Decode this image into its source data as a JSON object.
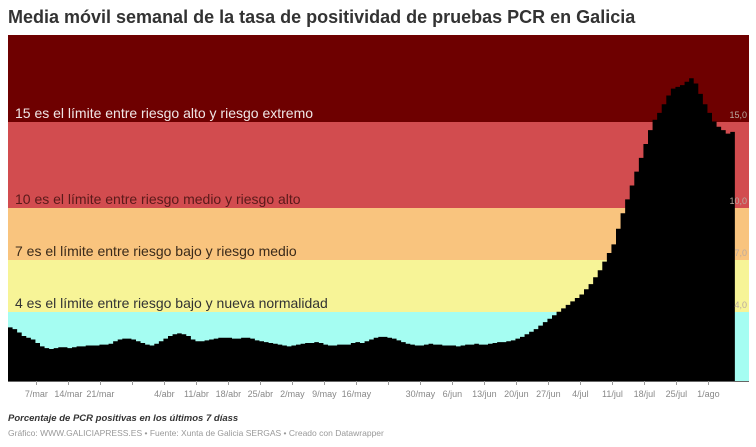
{
  "title": "Media móvil semanal de la tasa de positividad de pruebas PCR en Galicia",
  "notes": "Porcentaje de PCR positivas en los últimos 7 díass",
  "byline": "Gráfico: WWW.GALICIAPRESS.ES • Fuente: Xunta de Galicia SERGAS • Creado con Datawrapper",
  "bands": [
    {
      "from": 15,
      "to": 20,
      "color": "#6e0000",
      "label": "15 es el límite entre riesgo alto y riesgo extremo",
      "label_color": "#f0e6e6",
      "axis_label": "15,0"
    },
    {
      "from": 10,
      "to": 15,
      "color": "#d24c4f",
      "label": "10 es el límite entre riesgo medio y riesgo alto",
      "label_color": "#5a1a1a",
      "axis_label": "10,0"
    },
    {
      "from": 7,
      "to": 10,
      "color": "#f9c47e",
      "label": "7 es el límite entre riesgo bajo y riesgo medio",
      "label_color": "#3a2a1a",
      "axis_label": "7,0"
    },
    {
      "from": 4,
      "to": 7,
      "color": "#f7f497",
      "label": "4 es el límite entre riesgo bajo y nueva normalidad",
      "label_color": "#333333",
      "axis_label": "4,0"
    },
    {
      "from": 0,
      "to": 4,
      "color": "#a5fdf2",
      "label": "",
      "label_color": "#333333",
      "axis_label": ""
    }
  ],
  "chart_data": {
    "type": "bar",
    "title": "Media móvil semanal de la tasa de positividad de pruebas PCR en Galicia",
    "subtitle": "",
    "xlabel": "",
    "ylabel": "Porcentaje de PCR positivas en los últimos 7 días",
    "ylim": [
      0,
      20
    ],
    "bar_color": "#000000",
    "x_start": "1/mar",
    "x_end": "4/ago",
    "x_tick_labels": [
      "7/mar",
      "14/mar",
      "21/mar",
      "",
      "4/abr",
      "11/abr",
      "18/abr",
      "25/abr",
      "2/may",
      "9/may",
      "16/may",
      "",
      "30/may",
      "6/jun",
      "13/jun",
      "20/jun",
      "27/jun",
      "4/jul",
      "11/jul",
      "18/jul",
      "25/jul",
      "1/ago"
    ],
    "y_reference_lines": [
      4.0,
      7.0,
      10.0,
      15.0
    ],
    "grid": false,
    "legend": "none",
    "values": [
      3.1,
      3.0,
      2.8,
      2.6,
      2.5,
      2.4,
      2.2,
      2.0,
      1.9,
      1.85,
      1.9,
      1.95,
      1.95,
      1.9,
      1.95,
      2.0,
      2.0,
      2.05,
      2.05,
      2.05,
      2.1,
      2.1,
      2.15,
      2.3,
      2.4,
      2.45,
      2.45,
      2.4,
      2.3,
      2.2,
      2.1,
      2.05,
      2.15,
      2.3,
      2.45,
      2.6,
      2.7,
      2.75,
      2.7,
      2.6,
      2.4,
      2.3,
      2.3,
      2.35,
      2.4,
      2.45,
      2.5,
      2.5,
      2.5,
      2.45,
      2.45,
      2.5,
      2.5,
      2.45,
      2.35,
      2.3,
      2.25,
      2.2,
      2.15,
      2.1,
      2.05,
      2.0,
      2.05,
      2.1,
      2.15,
      2.2,
      2.2,
      2.25,
      2.2,
      2.1,
      2.05,
      2.05,
      2.1,
      2.1,
      2.1,
      2.2,
      2.25,
      2.2,
      2.3,
      2.4,
      2.5,
      2.55,
      2.55,
      2.5,
      2.45,
      2.35,
      2.25,
      2.15,
      2.1,
      2.05,
      2.05,
      2.1,
      2.15,
      2.1,
      2.1,
      2.05,
      2.05,
      2.05,
      2.0,
      2.05,
      2.1,
      2.1,
      2.15,
      2.1,
      2.1,
      2.15,
      2.2,
      2.25,
      2.25,
      2.3,
      2.35,
      2.45,
      2.55,
      2.7,
      2.85,
      3.0,
      3.2,
      3.4,
      3.6,
      3.8,
      4.0,
      4.2,
      4.4,
      4.6,
      4.8,
      5.0,
      5.3,
      5.6,
      6.0,
      6.4,
      6.9,
      7.4,
      7.9,
      8.8,
      9.7,
      10.5,
      11.3,
      12.1,
      12.9,
      13.7,
      14.5,
      15.1,
      15.5,
      16.0,
      16.5,
      16.9,
      17.0,
      17.1,
      17.3,
      17.5,
      17.2,
      16.6,
      16.0,
      15.5,
      15.0,
      14.7,
      14.5,
      14.3,
      14.4
    ]
  }
}
